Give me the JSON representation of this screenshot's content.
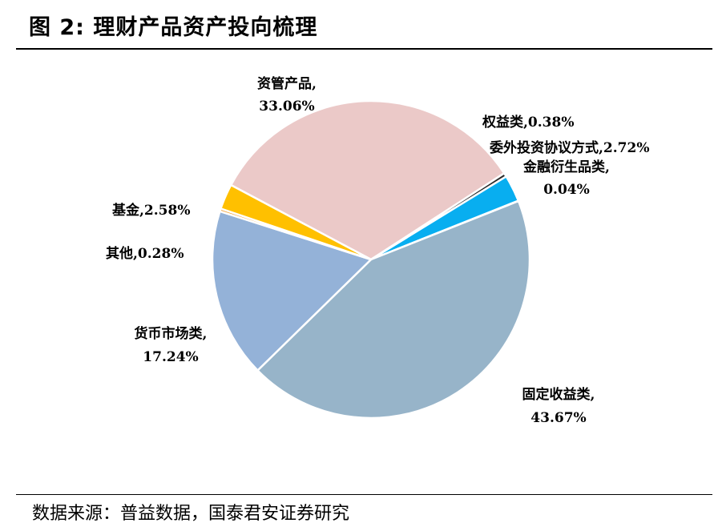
{
  "page": {
    "title": "图 2:  理财产品资产投向梳理",
    "source": "数据来源：普益数据，国泰君安证券研究"
  },
  "chart_data": {
    "type": "pie",
    "unit": "%",
    "slices": [
      {
        "name": "资管产品",
        "value": 33.06,
        "value_label": "33.06%",
        "color": "#ebc9c8"
      },
      {
        "name": "权益类",
        "value": 0.38,
        "value_label": "0.38%",
        "color": "#2b2b2b"
      },
      {
        "name": "委外投资协议方式",
        "value": 2.72,
        "value_label": "2.72%",
        "color": "#08aef0"
      },
      {
        "name": "金融衍生品类",
        "value": 0.04,
        "value_label": "0.04%",
        "color": "#1f3f6e"
      },
      {
        "name": "固定收益类",
        "value": 43.67,
        "value_label": "43.67%",
        "color": "#97b4c9"
      },
      {
        "name": "货币市场类",
        "value": 17.24,
        "value_label": "17.24%",
        "color": "#94b2d8"
      },
      {
        "name": "其他",
        "value": 0.28,
        "value_label": "0.28%",
        "color": "#f2a33a"
      },
      {
        "name": "基金",
        "value": 2.58,
        "value_label": "2.58%",
        "color": "#ffc000"
      }
    ]
  }
}
